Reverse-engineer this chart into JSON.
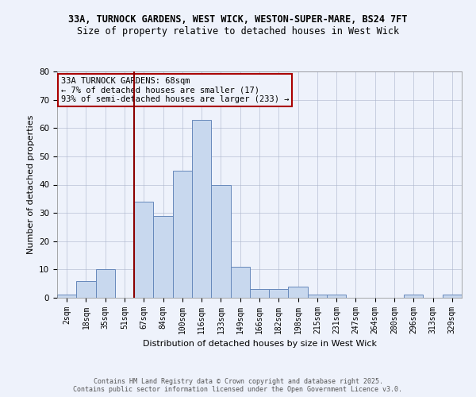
{
  "title_line1": "33A, TURNOCK GARDENS, WEST WICK, WESTON-SUPER-MARE, BS24 7FT",
  "title_line2": "Size of property relative to detached houses in West Wick",
  "xlabel": "Distribution of detached houses by size in West Wick",
  "ylabel": "Number of detached properties",
  "bin_labels": [
    "2sqm",
    "18sqm",
    "35sqm",
    "51sqm",
    "67sqm",
    "84sqm",
    "100sqm",
    "116sqm",
    "133sqm",
    "149sqm",
    "166sqm",
    "182sqm",
    "198sqm",
    "215sqm",
    "231sqm",
    "247sqm",
    "264sqm",
    "280sqm",
    "296sqm",
    "313sqm",
    "329sqm"
  ],
  "bin_values": [
    1,
    6,
    10,
    0,
    34,
    29,
    45,
    63,
    40,
    11,
    3,
    3,
    4,
    1,
    1,
    0,
    0,
    0,
    1,
    0,
    1
  ],
  "bar_color": "#c8d8ee",
  "bar_edge_color": "#6688bb",
  "vline_color": "#8b0000",
  "annotation_text": "33A TURNOCK GARDENS: 68sqm\n← 7% of detached houses are smaller (17)\n93% of semi-detached houses are larger (233) →",
  "annotation_box_color": "#aa0000",
  "ylim": [
    0,
    80
  ],
  "yticks": [
    0,
    10,
    20,
    30,
    40,
    50,
    60,
    70,
    80
  ],
  "footer_line1": "Contains HM Land Registry data © Crown copyright and database right 2025.",
  "footer_line2": "Contains public sector information licensed under the Open Government Licence v3.0.",
  "background_color": "#eef2fb",
  "grid_color": "#aab4cc",
  "title_fontsize": 8.5,
  "axis_fontsize": 8,
  "tick_fontsize": 7,
  "footer_fontsize": 6,
  "annotation_fontsize": 7.5
}
